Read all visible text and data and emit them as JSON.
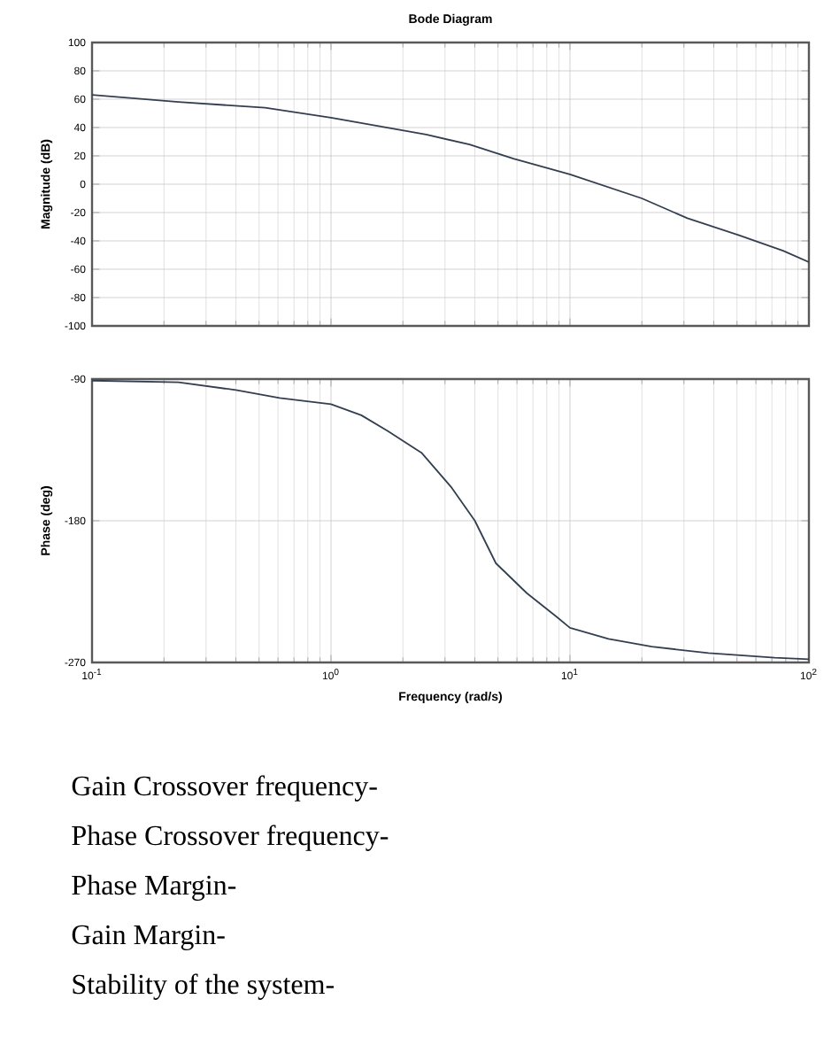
{
  "chart_data": [
    {
      "type": "line",
      "title": "Bode Diagram",
      "ylabel": "Magnitude (dB)",
      "tick_labels": "y",
      "grid": true,
      "log": "x",
      "xlim": [
        0.1,
        100
      ],
      "xticks": [
        {
          "value": 0.1,
          "label": null
        },
        {
          "value": 1,
          "label": null
        },
        {
          "value": 10,
          "label": null
        },
        {
          "value": 100,
          "label": null
        }
      ],
      "ylim": [
        -100,
        100
      ],
      "yticks": [
        -100,
        -80,
        -60,
        -40,
        -20,
        0,
        20,
        40,
        60,
        80,
        100
      ],
      "x": [
        0.1,
        0.23,
        0.53,
        1,
        2.5,
        3.8,
        5.8,
        10,
        20,
        31,
        51,
        78,
        100
      ],
      "series": [
        {
          "color": "#333f50",
          "values": [
            63,
            58,
            54,
            47,
            35,
            28,
            18,
            7,
            -10,
            -24,
            -36,
            -47,
            -55
          ]
        }
      ]
    },
    {
      "type": "line",
      "xlabel": "Frequency (rad/s)",
      "ylabel": "Phase (deg)",
      "grid": true,
      "log": "x",
      "xlim": [
        0.1,
        100
      ],
      "xticks": [
        {
          "value": 0.1,
          "label": "10$^{-1}$"
        },
        {
          "value": 1,
          "label": "10$^{0}$"
        },
        {
          "value": 10,
          "label": "10$^{1}$"
        },
        {
          "value": 100,
          "label": "10$^{2}$"
        }
      ],
      "ylim": [
        -270,
        -90
      ],
      "yticks": [
        -270,
        -180,
        -90
      ],
      "x": [
        0.1,
        0.23,
        0.4,
        0.61,
        1,
        1.34,
        1.73,
        2.4,
        3.2,
        4.0,
        4.9,
        6.6,
        8.8,
        10,
        14.5,
        22,
        38,
        72,
        100
      ],
      "series": [
        {
          "color": "#333f50",
          "values": [
            -91,
            -92,
            -97,
            -102,
            -106,
            -113,
            -123,
            -137,
            -159,
            -180,
            -207,
            -226,
            -241,
            -248,
            -255,
            -260,
            -264,
            -267,
            -268
          ]
        }
      ]
    },
    {
      "type": "other",
      "annotations": [
        "Gain Crossover frequency-",
        "Phase Crossover frequency-",
        "Phase Margin-",
        "Gain Margin-",
        "Stability of the system-"
      ]
    }
  ]
}
